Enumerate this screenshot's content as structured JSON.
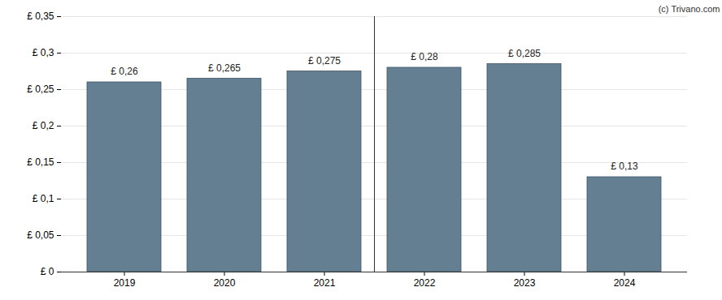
{
  "chart_data": {
    "type": "bar",
    "annotations": [
      "(c) Trivano.com"
    ],
    "categories": [
      "2019",
      "2020",
      "2021",
      "2022",
      "2023",
      "2024"
    ],
    "values": [
      0.26,
      0.265,
      0.275,
      0.28,
      0.285,
      0.13
    ],
    "value_labels": [
      "£ 0,26",
      "£ 0,265",
      "£ 0,275",
      "£ 0,28",
      "£ 0,285",
      "£ 0,13"
    ],
    "data_labels": true,
    "color": "#637f91",
    "ylim": [
      0,
      0.35
    ],
    "yticks": [
      {
        "value": 0,
        "label": "£ 0"
      },
      {
        "value": 0.05,
        "label": "£ 0,05"
      },
      {
        "value": 0.1,
        "label": "£ 0,1"
      },
      {
        "value": 0.15,
        "label": "£ 0,15"
      },
      {
        "value": 0.2,
        "label": "£ 0,2"
      },
      {
        "value": 0.25,
        "label": "£ 0,25"
      },
      {
        "value": 0.3,
        "label": "£ 0,3"
      },
      {
        "value": 0.35,
        "label": "£ 0,35"
      }
    ],
    "grid": true
  }
}
